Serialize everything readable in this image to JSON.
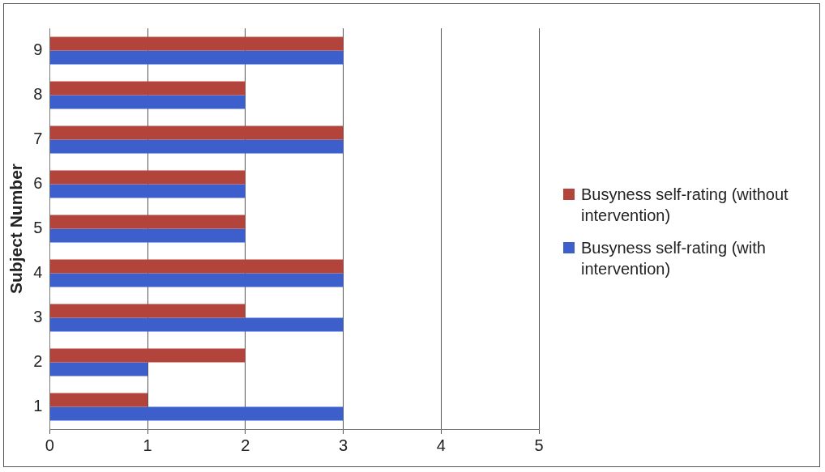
{
  "chart_data": {
    "type": "bar",
    "orientation": "horizontal",
    "ylabel": "Subject Number",
    "categories": [
      "9",
      "8",
      "7",
      "6",
      "5",
      "4",
      "3",
      "2",
      "1"
    ],
    "series": [
      {
        "name": "Busyness self-rating (without intervention)",
        "color": "#b3443c",
        "values": [
          3,
          2,
          3,
          2,
          2,
          3,
          2,
          2,
          1
        ]
      },
      {
        "name": "Busyness self-rating (with intervention)",
        "color": "#3d5fcc",
        "values": [
          3,
          2,
          3,
          2,
          2,
          3,
          3,
          1,
          3
        ]
      }
    ],
    "xlim": [
      0,
      5
    ],
    "xticks": [
      0,
      1,
      2,
      3,
      4,
      5
    ],
    "grid": "x",
    "legend": "right"
  }
}
